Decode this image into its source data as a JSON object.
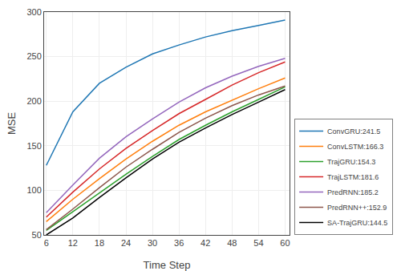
{
  "chart_data": {
    "type": "line",
    "x": [
      6,
      12,
      18,
      24,
      30,
      36,
      42,
      48,
      54,
      60
    ],
    "series": [
      {
        "name": "ConvGRU:241.5",
        "color": "#1f77b4",
        "values": [
          128,
          188,
          220,
          238,
          253,
          263,
          272,
          279,
          285,
          291
        ]
      },
      {
        "name": "ConvLSTM:166.3",
        "color": "#ff7f0e",
        "values": [
          65,
          90,
          113,
          135,
          155,
          173,
          188,
          201,
          214,
          226
        ]
      },
      {
        "name": "TrajGRU:154.3",
        "color": "#2ca02c",
        "values": [
          55,
          76,
          97,
          118,
          138,
          157,
          173,
          188,
          202,
          216
        ]
      },
      {
        "name": "TrajLSTM:181.6",
        "color": "#d62728",
        "values": [
          70,
          98,
          124,
          147,
          167,
          186,
          202,
          218,
          232,
          244
        ]
      },
      {
        "name": "PredRNN:185.2",
        "color": "#9467bd",
        "values": [
          75,
          106,
          136,
          160,
          180,
          199,
          215,
          228,
          239,
          248
        ]
      },
      {
        "name": "PredRNN++:152.9",
        "color": "#8c564b",
        "values": [
          56,
          79,
          103,
          126,
          146,
          165,
          181,
          195,
          207,
          217
        ]
      },
      {
        "name": "SA-TrajGRU:144.5",
        "color": "#000000",
        "values": [
          50,
          69,
          92,
          114,
          135,
          154,
          170,
          185,
          199,
          213
        ]
      }
    ],
    "xlabel": "Time Step",
    "ylabel": "MSE",
    "xlim": [
      5.5,
      61
    ],
    "ylim": [
      50,
      300
    ],
    "xticks": [
      6,
      12,
      18,
      24,
      30,
      36,
      42,
      48,
      54,
      60
    ],
    "yticks": [
      50,
      100,
      150,
      200,
      250,
      300
    ],
    "grid": true,
    "legend": "lower right"
  }
}
